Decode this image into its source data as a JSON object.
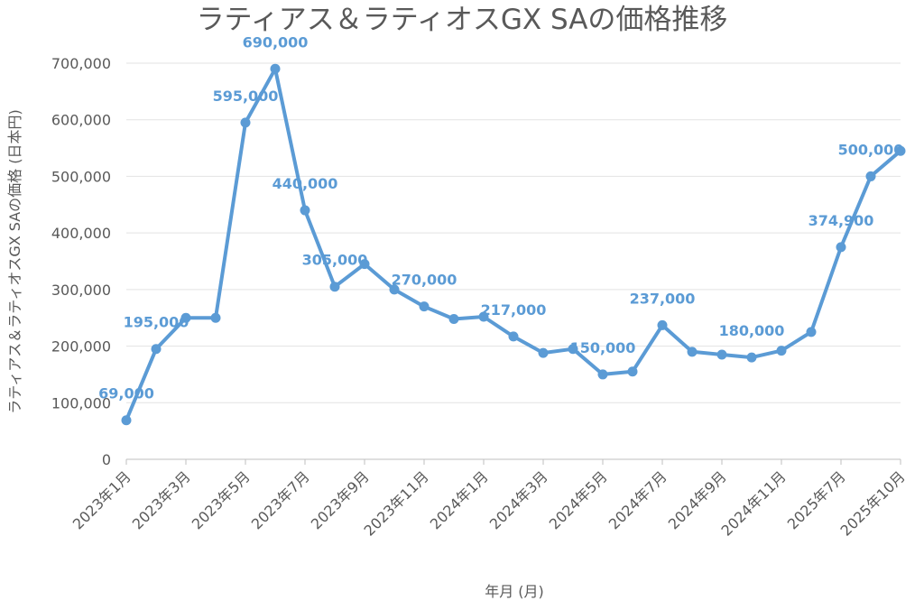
{
  "chart_data": {
    "type": "line",
    "title": "ラティアス＆ラティオスGX SAの価格推移",
    "xlabel": "年月 (月)",
    "ylabel": "ラティアス＆ラティオスGX SAの価格 (日本円)",
    "ylim": [
      0,
      700000
    ],
    "yticks": [
      0,
      100000,
      200000,
      300000,
      400000,
      500000,
      600000,
      700000
    ],
    "ytick_labels": [
      "0",
      "100,000",
      "200,000",
      "300,000",
      "400,000",
      "500,000",
      "600,000",
      "700,000"
    ],
    "grid": true,
    "legend": "none",
    "color": "#5b9bd5",
    "x": [
      "2023年1月",
      "2023年2月",
      "2023年3月",
      "2023年4月",
      "2023年5月",
      "2023年6月",
      "2023年7月",
      "2023年8月",
      "2023年9月",
      "2023年10月",
      "2023年11月",
      "2023年12月",
      "2024年1月",
      "2024年2月",
      "2024年3月",
      "2024年4月",
      "2024年5月",
      "2024年6月",
      "2024年7月",
      "2024年8月",
      "2024年9月",
      "2024年10月",
      "2024年11月",
      "2024年12月",
      "2025年7月",
      "2025年8月",
      "2025年10月"
    ],
    "x_tick_labels": [
      {
        "i": 0,
        "label": "2023年1月"
      },
      {
        "i": 2,
        "label": "2023年3月"
      },
      {
        "i": 4,
        "label": "2023年5月"
      },
      {
        "i": 6,
        "label": "2023年7月"
      },
      {
        "i": 8,
        "label": "2023年9月"
      },
      {
        "i": 10,
        "label": "2023年11月"
      },
      {
        "i": 12,
        "label": "2024年1月"
      },
      {
        "i": 14,
        "label": "2024年3月"
      },
      {
        "i": 16,
        "label": "2024年5月"
      },
      {
        "i": 18,
        "label": "2024年7月"
      },
      {
        "i": 20,
        "label": "2024年9月"
      },
      {
        "i": 22,
        "label": "2024年11月"
      },
      {
        "i": 24,
        "label": "2025年7月"
      },
      {
        "i": 26,
        "label": "2025年10月"
      }
    ],
    "values": [
      69000,
      195000,
      250000,
      250000,
      595000,
      690000,
      440000,
      305000,
      345000,
      300000,
      270000,
      248000,
      252000,
      217000,
      188000,
      195000,
      150000,
      155000,
      237000,
      190000,
      185000,
      180000,
      192000,
      225000,
      374900,
      500000,
      545000
    ],
    "data_labels": [
      {
        "i": 0,
        "label": "69,000"
      },
      {
        "i": 1,
        "label": "195,000"
      },
      {
        "i": 4,
        "label": "595,000"
      },
      {
        "i": 5,
        "label": "690,000"
      },
      {
        "i": 6,
        "label": "440,000"
      },
      {
        "i": 7,
        "label": "305,000"
      },
      {
        "i": 10,
        "label": "270,000"
      },
      {
        "i": 13,
        "label": "217,000"
      },
      {
        "i": 16,
        "label": "150,000"
      },
      {
        "i": 18,
        "label": "237,000"
      },
      {
        "i": 21,
        "label": "180,000"
      },
      {
        "i": 24,
        "label": "374,900"
      },
      {
        "i": 25,
        "label": "500,000"
      }
    ]
  }
}
